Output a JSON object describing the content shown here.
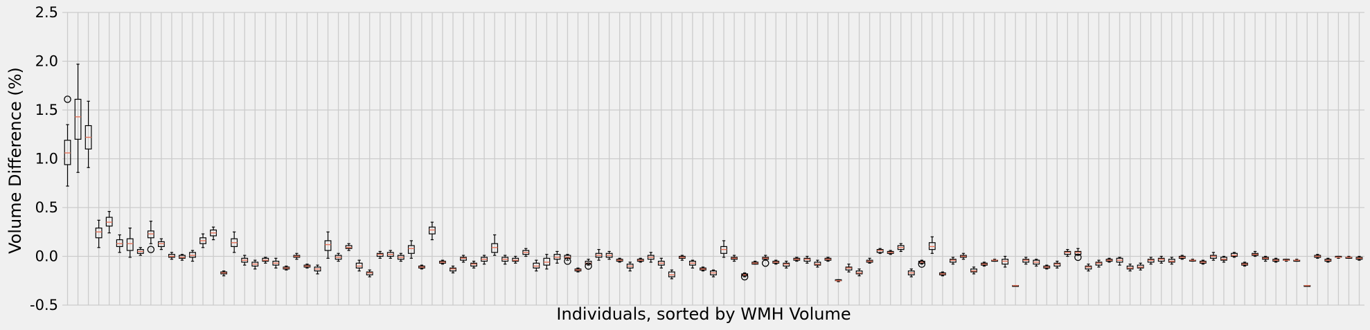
{
  "chart_data": {
    "type": "box",
    "title": "",
    "xlabel": "Individuals, sorted by WMH Volume",
    "ylabel": "Volume Difference (%)",
    "ylim": [
      -0.5,
      2.5
    ],
    "yticks": [
      "-0.5",
      "0.0",
      "0.5",
      "1.0",
      "1.5",
      "2.0",
      "2.5"
    ],
    "x_ticklabels_shown": false,
    "grid": true,
    "colors": {
      "background": "#f0f0f0",
      "grid": "#cbcbcb",
      "box": "#000000",
      "median": "#e8735a"
    },
    "boxes": [
      {
        "med": 1.06,
        "q1": 0.94,
        "q3": 1.19,
        "lo": 0.72,
        "hi": 1.35,
        "out": [
          1.61
        ]
      },
      {
        "med": 1.43,
        "q1": 1.2,
        "q3": 1.61,
        "lo": 0.86,
        "hi": 1.97,
        "out": []
      },
      {
        "med": 1.22,
        "q1": 1.1,
        "q3": 1.34,
        "lo": 0.91,
        "hi": 1.59,
        "out": []
      },
      {
        "med": 0.25,
        "q1": 0.19,
        "q3": 0.29,
        "lo": 0.09,
        "hi": 0.37,
        "out": []
      },
      {
        "med": 0.35,
        "q1": 0.31,
        "q3": 0.4,
        "lo": 0.24,
        "hi": 0.46,
        "out": []
      },
      {
        "med": 0.13,
        "q1": 0.1,
        "q3": 0.17,
        "lo": 0.04,
        "hi": 0.22,
        "out": []
      },
      {
        "med": 0.13,
        "q1": 0.06,
        "q3": 0.18,
        "lo": -0.01,
        "hi": 0.29,
        "out": []
      },
      {
        "med": 0.05,
        "q1": 0.03,
        "q3": 0.07,
        "lo": 0.01,
        "hi": 0.09,
        "out": []
      },
      {
        "med": 0.23,
        "q1": 0.19,
        "q3": 0.26,
        "lo": 0.13,
        "hi": 0.36,
        "out": [
          0.07
        ]
      },
      {
        "med": 0.13,
        "q1": 0.1,
        "q3": 0.15,
        "lo": 0.07,
        "hi": 0.18,
        "out": []
      },
      {
        "med": 0.0,
        "q1": -0.01,
        "q3": 0.02,
        "lo": -0.03,
        "hi": 0.04,
        "out": []
      },
      {
        "med": -0.01,
        "q1": -0.02,
        "q3": 0.01,
        "lo": -0.04,
        "hi": 0.02,
        "out": []
      },
      {
        "med": 0.01,
        "q1": -0.01,
        "q3": 0.04,
        "lo": -0.05,
        "hi": 0.06,
        "out": []
      },
      {
        "med": 0.16,
        "q1": 0.13,
        "q3": 0.19,
        "lo": 0.09,
        "hi": 0.23,
        "out": []
      },
      {
        "med": 0.24,
        "q1": 0.21,
        "q3": 0.27,
        "lo": 0.17,
        "hi": 0.3,
        "out": []
      },
      {
        "med": -0.17,
        "q1": -0.18,
        "q3": -0.16,
        "lo": -0.2,
        "hi": -0.15,
        "out": []
      },
      {
        "med": 0.14,
        "q1": 0.1,
        "q3": 0.18,
        "lo": 0.04,
        "hi": 0.25,
        "out": []
      },
      {
        "med": -0.04,
        "q1": -0.06,
        "q3": -0.02,
        "lo": -0.09,
        "hi": 0.01,
        "out": []
      },
      {
        "med": -0.08,
        "q1": -0.1,
        "q3": -0.06,
        "lo": -0.13,
        "hi": -0.04,
        "out": []
      },
      {
        "med": -0.04,
        "q1": -0.05,
        "q3": -0.02,
        "lo": -0.07,
        "hi": -0.01,
        "out": []
      },
      {
        "med": -0.07,
        "q1": -0.09,
        "q3": -0.05,
        "lo": -0.12,
        "hi": -0.02,
        "out": []
      },
      {
        "med": -0.12,
        "q1": -0.13,
        "q3": -0.11,
        "lo": -0.14,
        "hi": -0.1,
        "out": []
      },
      {
        "med": 0.0,
        "q1": -0.01,
        "q3": 0.01,
        "lo": -0.03,
        "hi": 0.03,
        "out": []
      },
      {
        "med": -0.1,
        "q1": -0.11,
        "q3": -0.09,
        "lo": -0.12,
        "hi": -0.08,
        "out": []
      },
      {
        "med": -0.13,
        "q1": -0.15,
        "q3": -0.11,
        "lo": -0.18,
        "hi": -0.09,
        "out": []
      },
      {
        "med": 0.12,
        "q1": 0.06,
        "q3": 0.16,
        "lo": -0.02,
        "hi": 0.25,
        "out": []
      },
      {
        "med": -0.01,
        "q1": -0.03,
        "q3": 0.01,
        "lo": -0.05,
        "hi": 0.03,
        "out": []
      },
      {
        "med": 0.09,
        "q1": 0.08,
        "q3": 0.11,
        "lo": 0.06,
        "hi": 0.13,
        "out": []
      },
      {
        "med": -0.1,
        "q1": -0.12,
        "q3": -0.07,
        "lo": -0.15,
        "hi": -0.04,
        "out": []
      },
      {
        "med": -0.17,
        "q1": -0.19,
        "q3": -0.16,
        "lo": -0.21,
        "hi": -0.14,
        "out": []
      },
      {
        "med": 0.02,
        "q1": 0.0,
        "q3": 0.03,
        "lo": -0.02,
        "hi": 0.05,
        "out": []
      },
      {
        "med": 0.02,
        "q1": 0.0,
        "q3": 0.04,
        "lo": -0.02,
        "hi": 0.06,
        "out": []
      },
      {
        "med": -0.01,
        "q1": -0.03,
        "q3": 0.01,
        "lo": -0.05,
        "hi": 0.03,
        "out": []
      },
      {
        "med": 0.08,
        "q1": 0.03,
        "q3": 0.11,
        "lo": -0.02,
        "hi": 0.16,
        "out": []
      },
      {
        "med": -0.11,
        "q1": -0.12,
        "q3": -0.1,
        "lo": -0.13,
        "hi": -0.09,
        "out": []
      },
      {
        "med": 0.27,
        "q1": 0.23,
        "q3": 0.3,
        "lo": 0.17,
        "hi": 0.35,
        "out": []
      },
      {
        "med": -0.06,
        "q1": -0.07,
        "q3": -0.05,
        "lo": -0.08,
        "hi": -0.04,
        "out": []
      },
      {
        "med": -0.13,
        "q1": -0.15,
        "q3": -0.12,
        "lo": -0.17,
        "hi": -0.1,
        "out": []
      },
      {
        "med": -0.02,
        "q1": -0.04,
        "q3": -0.01,
        "lo": -0.06,
        "hi": 0.01,
        "out": []
      },
      {
        "med": -0.08,
        "q1": -0.1,
        "q3": -0.07,
        "lo": -0.12,
        "hi": -0.05,
        "out": []
      },
      {
        "med": -0.03,
        "q1": -0.05,
        "q3": -0.01,
        "lo": -0.08,
        "hi": 0.01,
        "out": []
      },
      {
        "med": 0.09,
        "q1": 0.04,
        "q3": 0.13,
        "lo": 0.01,
        "hi": 0.22,
        "out": []
      },
      {
        "med": -0.03,
        "q1": -0.05,
        "q3": -0.01,
        "lo": -0.08,
        "hi": 0.01,
        "out": []
      },
      {
        "med": -0.04,
        "q1": -0.05,
        "q3": -0.02,
        "lo": -0.07,
        "hi": 0.0,
        "out": []
      },
      {
        "med": 0.04,
        "q1": 0.02,
        "q3": 0.06,
        "lo": 0.0,
        "hi": 0.08,
        "out": []
      },
      {
        "med": -0.1,
        "q1": -0.12,
        "q3": -0.07,
        "lo": -0.15,
        "hi": -0.04,
        "out": []
      },
      {
        "med": -0.06,
        "q1": -0.09,
        "q3": -0.02,
        "lo": -0.13,
        "hi": 0.02,
        "out": []
      },
      {
        "med": -0.01,
        "q1": -0.03,
        "q3": 0.02,
        "lo": -0.07,
        "hi": 0.05,
        "out": []
      },
      {
        "med": -0.01,
        "q1": -0.02,
        "q3": 0.01,
        "lo": -0.04,
        "hi": 0.02,
        "out": [
          -0.05
        ]
      },
      {
        "med": -0.14,
        "q1": -0.15,
        "q3": -0.13,
        "lo": -0.16,
        "hi": -0.12,
        "out": []
      },
      {
        "med": -0.07,
        "q1": -0.08,
        "q3": -0.05,
        "lo": -0.09,
        "hi": -0.03,
        "out": [
          -0.1
        ]
      },
      {
        "med": 0.01,
        "q1": -0.01,
        "q3": 0.03,
        "lo": -0.04,
        "hi": 0.07,
        "out": []
      },
      {
        "med": 0.01,
        "q1": -0.01,
        "q3": 0.03,
        "lo": -0.03,
        "hi": 0.05,
        "out": []
      },
      {
        "med": -0.04,
        "q1": -0.05,
        "q3": -0.03,
        "lo": -0.06,
        "hi": -0.02,
        "out": []
      },
      {
        "med": -0.1,
        "q1": -0.12,
        "q3": -0.08,
        "lo": -0.15,
        "hi": -0.06,
        "out": []
      },
      {
        "med": -0.04,
        "q1": -0.05,
        "q3": -0.03,
        "lo": -0.06,
        "hi": -0.02,
        "out": []
      },
      {
        "med": -0.01,
        "q1": -0.03,
        "q3": 0.01,
        "lo": -0.06,
        "hi": 0.04,
        "out": []
      },
      {
        "med": -0.07,
        "q1": -0.09,
        "q3": -0.05,
        "lo": -0.12,
        "hi": -0.02,
        "out": []
      },
      {
        "med": -0.19,
        "q1": -0.21,
        "q3": -0.16,
        "lo": -0.23,
        "hi": -0.14,
        "out": []
      },
      {
        "med": -0.01,
        "q1": -0.02,
        "q3": 0.0,
        "lo": -0.04,
        "hi": 0.01,
        "out": []
      },
      {
        "med": -0.07,
        "q1": -0.09,
        "q3": -0.05,
        "lo": -0.12,
        "hi": -0.04,
        "out": []
      },
      {
        "med": -0.13,
        "q1": -0.14,
        "q3": -0.12,
        "lo": -0.15,
        "hi": -0.11,
        "out": []
      },
      {
        "med": -0.17,
        "q1": -0.19,
        "q3": -0.15,
        "lo": -0.21,
        "hi": -0.14,
        "out": []
      },
      {
        "med": 0.07,
        "q1": 0.03,
        "q3": 0.1,
        "lo": -0.01,
        "hi": 0.16,
        "out": []
      },
      {
        "med": -0.02,
        "q1": -0.03,
        "q3": -0.01,
        "lo": -0.05,
        "hi": 0.01,
        "out": []
      },
      {
        "med": -0.19,
        "q1": -0.2,
        "q3": -0.18,
        "lo": -0.21,
        "hi": -0.17,
        "out": [
          -0.21
        ]
      },
      {
        "med": -0.07,
        "q1": -0.08,
        "q3": -0.06,
        "lo": -0.08,
        "hi": -0.05,
        "out": []
      },
      {
        "med": -0.02,
        "q1": -0.03,
        "q3": -0.01,
        "lo": -0.04,
        "hi": 0.01,
        "out": [
          -0.07
        ]
      },
      {
        "med": -0.06,
        "q1": -0.07,
        "q3": -0.05,
        "lo": -0.08,
        "hi": -0.04,
        "out": []
      },
      {
        "med": -0.08,
        "q1": -0.1,
        "q3": -0.07,
        "lo": -0.12,
        "hi": -0.05,
        "out": []
      },
      {
        "med": -0.03,
        "q1": -0.04,
        "q3": -0.02,
        "lo": -0.05,
        "hi": -0.01,
        "out": []
      },
      {
        "med": -0.03,
        "q1": -0.05,
        "q3": -0.02,
        "lo": -0.07,
        "hi": 0.0,
        "out": []
      },
      {
        "med": -0.08,
        "q1": -0.09,
        "q3": -0.06,
        "lo": -0.11,
        "hi": -0.04,
        "out": []
      },
      {
        "med": -0.03,
        "q1": -0.04,
        "q3": -0.02,
        "lo": -0.05,
        "hi": -0.01,
        "out": []
      },
      {
        "med": -0.25,
        "q1": -0.25,
        "q3": -0.24,
        "lo": -0.26,
        "hi": -0.24,
        "out": []
      },
      {
        "med": -0.12,
        "q1": -0.14,
        "q3": -0.11,
        "lo": -0.16,
        "hi": -0.08,
        "out": []
      },
      {
        "med": -0.17,
        "q1": -0.18,
        "q3": -0.15,
        "lo": -0.2,
        "hi": -0.13,
        "out": []
      },
      {
        "med": -0.05,
        "q1": -0.06,
        "q3": -0.04,
        "lo": -0.07,
        "hi": -0.02,
        "out": []
      },
      {
        "med": 0.06,
        "q1": 0.04,
        "q3": 0.07,
        "lo": 0.03,
        "hi": 0.08,
        "out": []
      },
      {
        "med": 0.04,
        "q1": 0.03,
        "q3": 0.05,
        "lo": 0.02,
        "hi": 0.06,
        "out": []
      },
      {
        "med": 0.09,
        "q1": 0.07,
        "q3": 0.11,
        "lo": 0.05,
        "hi": 0.13,
        "out": []
      },
      {
        "med": -0.17,
        "q1": -0.19,
        "q3": -0.15,
        "lo": -0.21,
        "hi": -0.13,
        "out": []
      },
      {
        "med": -0.06,
        "q1": -0.07,
        "q3": -0.05,
        "lo": -0.08,
        "hi": -0.04,
        "out": [
          -0.08
        ]
      },
      {
        "med": 0.1,
        "q1": 0.07,
        "q3": 0.14,
        "lo": 0.03,
        "hi": 0.2,
        "out": []
      },
      {
        "med": -0.18,
        "q1": -0.19,
        "q3": -0.17,
        "lo": -0.2,
        "hi": -0.16,
        "out": []
      },
      {
        "med": -0.04,
        "q1": -0.06,
        "q3": -0.03,
        "lo": -0.08,
        "hi": -0.01,
        "out": []
      },
      {
        "med": 0.0,
        "q1": -0.01,
        "q3": 0.01,
        "lo": -0.03,
        "hi": 0.03,
        "out": []
      },
      {
        "med": -0.15,
        "q1": -0.16,
        "q3": -0.13,
        "lo": -0.18,
        "hi": -0.11,
        "out": []
      },
      {
        "med": -0.08,
        "q1": -0.09,
        "q3": -0.07,
        "lo": -0.1,
        "hi": -0.06,
        "out": []
      },
      {
        "med": -0.04,
        "q1": -0.05,
        "q3": -0.04,
        "lo": -0.05,
        "hi": -0.03,
        "out": []
      },
      {
        "med": -0.05,
        "q1": -0.08,
        "q3": -0.03,
        "lo": -0.11,
        "hi": 0.0,
        "out": []
      },
      {
        "med": -0.3,
        "q1": -0.3,
        "q3": -0.3,
        "lo": -0.3,
        "hi": -0.3,
        "out": []
      },
      {
        "med": -0.04,
        "q1": -0.06,
        "q3": -0.03,
        "lo": -0.08,
        "hi": -0.01,
        "out": []
      },
      {
        "med": -0.06,
        "q1": -0.08,
        "q3": -0.04,
        "lo": -0.1,
        "hi": -0.03,
        "out": []
      },
      {
        "med": -0.11,
        "q1": -0.12,
        "q3": -0.1,
        "lo": -0.13,
        "hi": -0.09,
        "out": []
      },
      {
        "med": -0.08,
        "q1": -0.1,
        "q3": -0.07,
        "lo": -0.12,
        "hi": -0.05,
        "out": []
      },
      {
        "med": 0.04,
        "q1": 0.02,
        "q3": 0.05,
        "lo": 0.0,
        "hi": 0.07,
        "out": []
      },
      {
        "med": 0.04,
        "q1": 0.02,
        "q3": 0.05,
        "lo": 0.01,
        "hi": 0.08,
        "out": [
          -0.01
        ]
      },
      {
        "med": -0.11,
        "q1": -0.13,
        "q3": -0.1,
        "lo": -0.15,
        "hi": -0.08,
        "out": []
      },
      {
        "med": -0.07,
        "q1": -0.09,
        "q3": -0.06,
        "lo": -0.11,
        "hi": -0.04,
        "out": []
      },
      {
        "med": -0.04,
        "q1": -0.05,
        "q3": -0.03,
        "lo": -0.06,
        "hi": -0.02,
        "out": []
      },
      {
        "med": -0.04,
        "q1": -0.06,
        "q3": -0.02,
        "lo": -0.09,
        "hi": -0.01,
        "out": []
      },
      {
        "med": -0.12,
        "q1": -0.13,
        "q3": -0.1,
        "lo": -0.15,
        "hi": -0.08,
        "out": []
      },
      {
        "med": -0.11,
        "q1": -0.12,
        "q3": -0.09,
        "lo": -0.14,
        "hi": -0.07,
        "out": []
      },
      {
        "med": -0.04,
        "q1": -0.06,
        "q3": -0.03,
        "lo": -0.08,
        "hi": -0.01,
        "out": []
      },
      {
        "med": -0.03,
        "q1": -0.05,
        "q3": -0.02,
        "lo": -0.07,
        "hi": 0.0,
        "out": []
      },
      {
        "med": -0.05,
        "q1": -0.06,
        "q3": -0.03,
        "lo": -0.08,
        "hi": -0.01,
        "out": []
      },
      {
        "med": -0.01,
        "q1": -0.02,
        "q3": 0.0,
        "lo": -0.03,
        "hi": 0.01,
        "out": []
      },
      {
        "med": -0.04,
        "q1": -0.04,
        "q3": -0.04,
        "lo": -0.05,
        "hi": -0.03,
        "out": []
      },
      {
        "med": -0.06,
        "q1": -0.07,
        "q3": -0.05,
        "lo": -0.08,
        "hi": -0.04,
        "out": []
      },
      {
        "med": 0.0,
        "q1": -0.02,
        "q3": 0.01,
        "lo": -0.04,
        "hi": 0.04,
        "out": []
      },
      {
        "med": -0.03,
        "q1": -0.04,
        "q3": -0.01,
        "lo": -0.06,
        "hi": 0.0,
        "out": []
      },
      {
        "med": 0.01,
        "q1": 0.0,
        "q3": 0.03,
        "lo": -0.01,
        "hi": 0.04,
        "out": []
      },
      {
        "med": -0.08,
        "q1": -0.09,
        "q3": -0.07,
        "lo": -0.1,
        "hi": -0.06,
        "out": []
      },
      {
        "med": 0.02,
        "q1": 0.01,
        "q3": 0.03,
        "lo": 0.0,
        "hi": 0.05,
        "out": []
      },
      {
        "med": -0.02,
        "q1": -0.03,
        "q3": -0.01,
        "lo": -0.05,
        "hi": 0.0,
        "out": []
      },
      {
        "med": -0.04,
        "q1": -0.05,
        "q3": -0.03,
        "lo": -0.06,
        "hi": -0.02,
        "out": []
      },
      {
        "med": -0.04,
        "q1": -0.04,
        "q3": -0.03,
        "lo": -0.05,
        "hi": -0.03,
        "out": []
      },
      {
        "med": -0.04,
        "q1": -0.05,
        "q3": -0.04,
        "lo": -0.05,
        "hi": -0.03,
        "out": []
      },
      {
        "med": -0.3,
        "q1": -0.3,
        "q3": -0.3,
        "lo": -0.3,
        "hi": -0.3,
        "out": []
      },
      {
        "med": 0.0,
        "q1": -0.01,
        "q3": 0.01,
        "lo": -0.02,
        "hi": 0.02,
        "out": []
      },
      {
        "med": -0.04,
        "q1": -0.05,
        "q3": -0.03,
        "lo": -0.06,
        "hi": -0.02,
        "out": []
      },
      {
        "med": -0.01,
        "q1": -0.01,
        "q3": 0.0,
        "lo": -0.02,
        "hi": 0.0,
        "out": []
      },
      {
        "med": -0.01,
        "q1": -0.02,
        "q3": -0.01,
        "lo": -0.02,
        "hi": 0.0,
        "out": []
      },
      {
        "med": -0.02,
        "q1": -0.03,
        "q3": -0.01,
        "lo": -0.04,
        "hi": 0.0,
        "out": []
      }
    ]
  }
}
